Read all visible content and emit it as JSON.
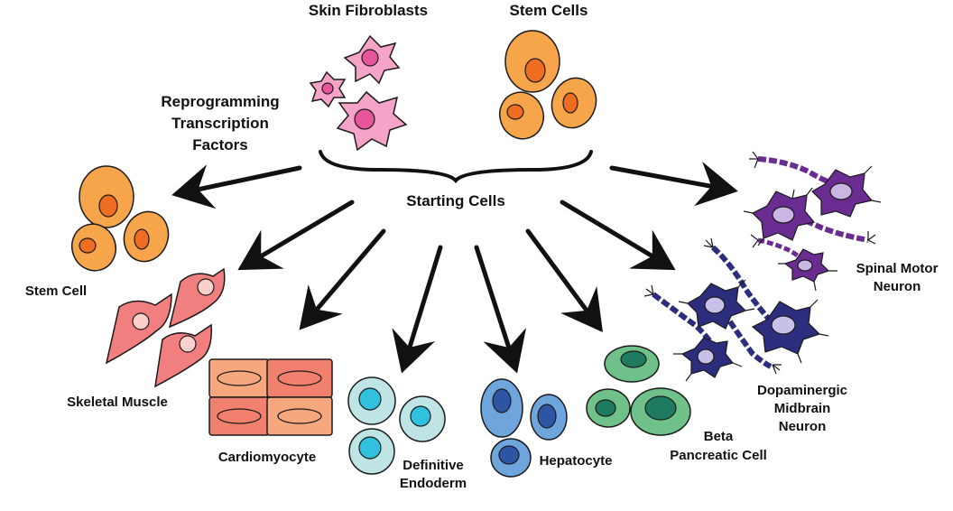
{
  "labels": {
    "skin_fibroblasts": "Skin Fibroblasts",
    "stem_cells_top": "Stem Cells",
    "reprogramming": [
      "Reprogramming",
      "Transcription",
      "Factors"
    ],
    "starting_cells": "Starting Cells",
    "stem_cell": "Stem Cell",
    "skeletal_muscle": "Skeletal Muscle",
    "cardiomyocyte": "Cardiomyocyte",
    "definitive_endoderm": [
      "Definitive",
      "Endoderm"
    ],
    "hepatocyte": "Hepatocyte",
    "beta_pancreatic": [
      "Beta",
      "Pancreatic Cell"
    ],
    "dopaminergic": [
      "Dopaminergic",
      "Midbrain",
      "Neuron"
    ],
    "spinal_motor": [
      "Spinal Motor",
      "Neuron"
    ]
  },
  "colors": {
    "fibroblast": "#f5a3c7",
    "fibroblast_nucleus": "#e8559a",
    "stem_cell": "#f7a54a",
    "stem_nucleus": "#ee6d20",
    "muscle": "#f27f7f",
    "muscle_nucleus": "#fbd0cc",
    "cardio_light": "#f7a77e",
    "cardio_dark": "#f2806e",
    "endoderm": "#bfe4e6",
    "endoderm_nucleus": "#2fc1dd",
    "hepatocyte": "#6ea5dc",
    "hepatocyte_nucleus": "#2d55a4",
    "beta": "#70c08a",
    "beta_nucleus": "#1e7b5f",
    "dopaminergic": "#2d2d7d",
    "dopaminergic_nucleus": "#c8c0e8",
    "motor": "#6a2c91",
    "motor_nucleus": "#c9b6e2",
    "outline": "#1a1a1a"
  }
}
